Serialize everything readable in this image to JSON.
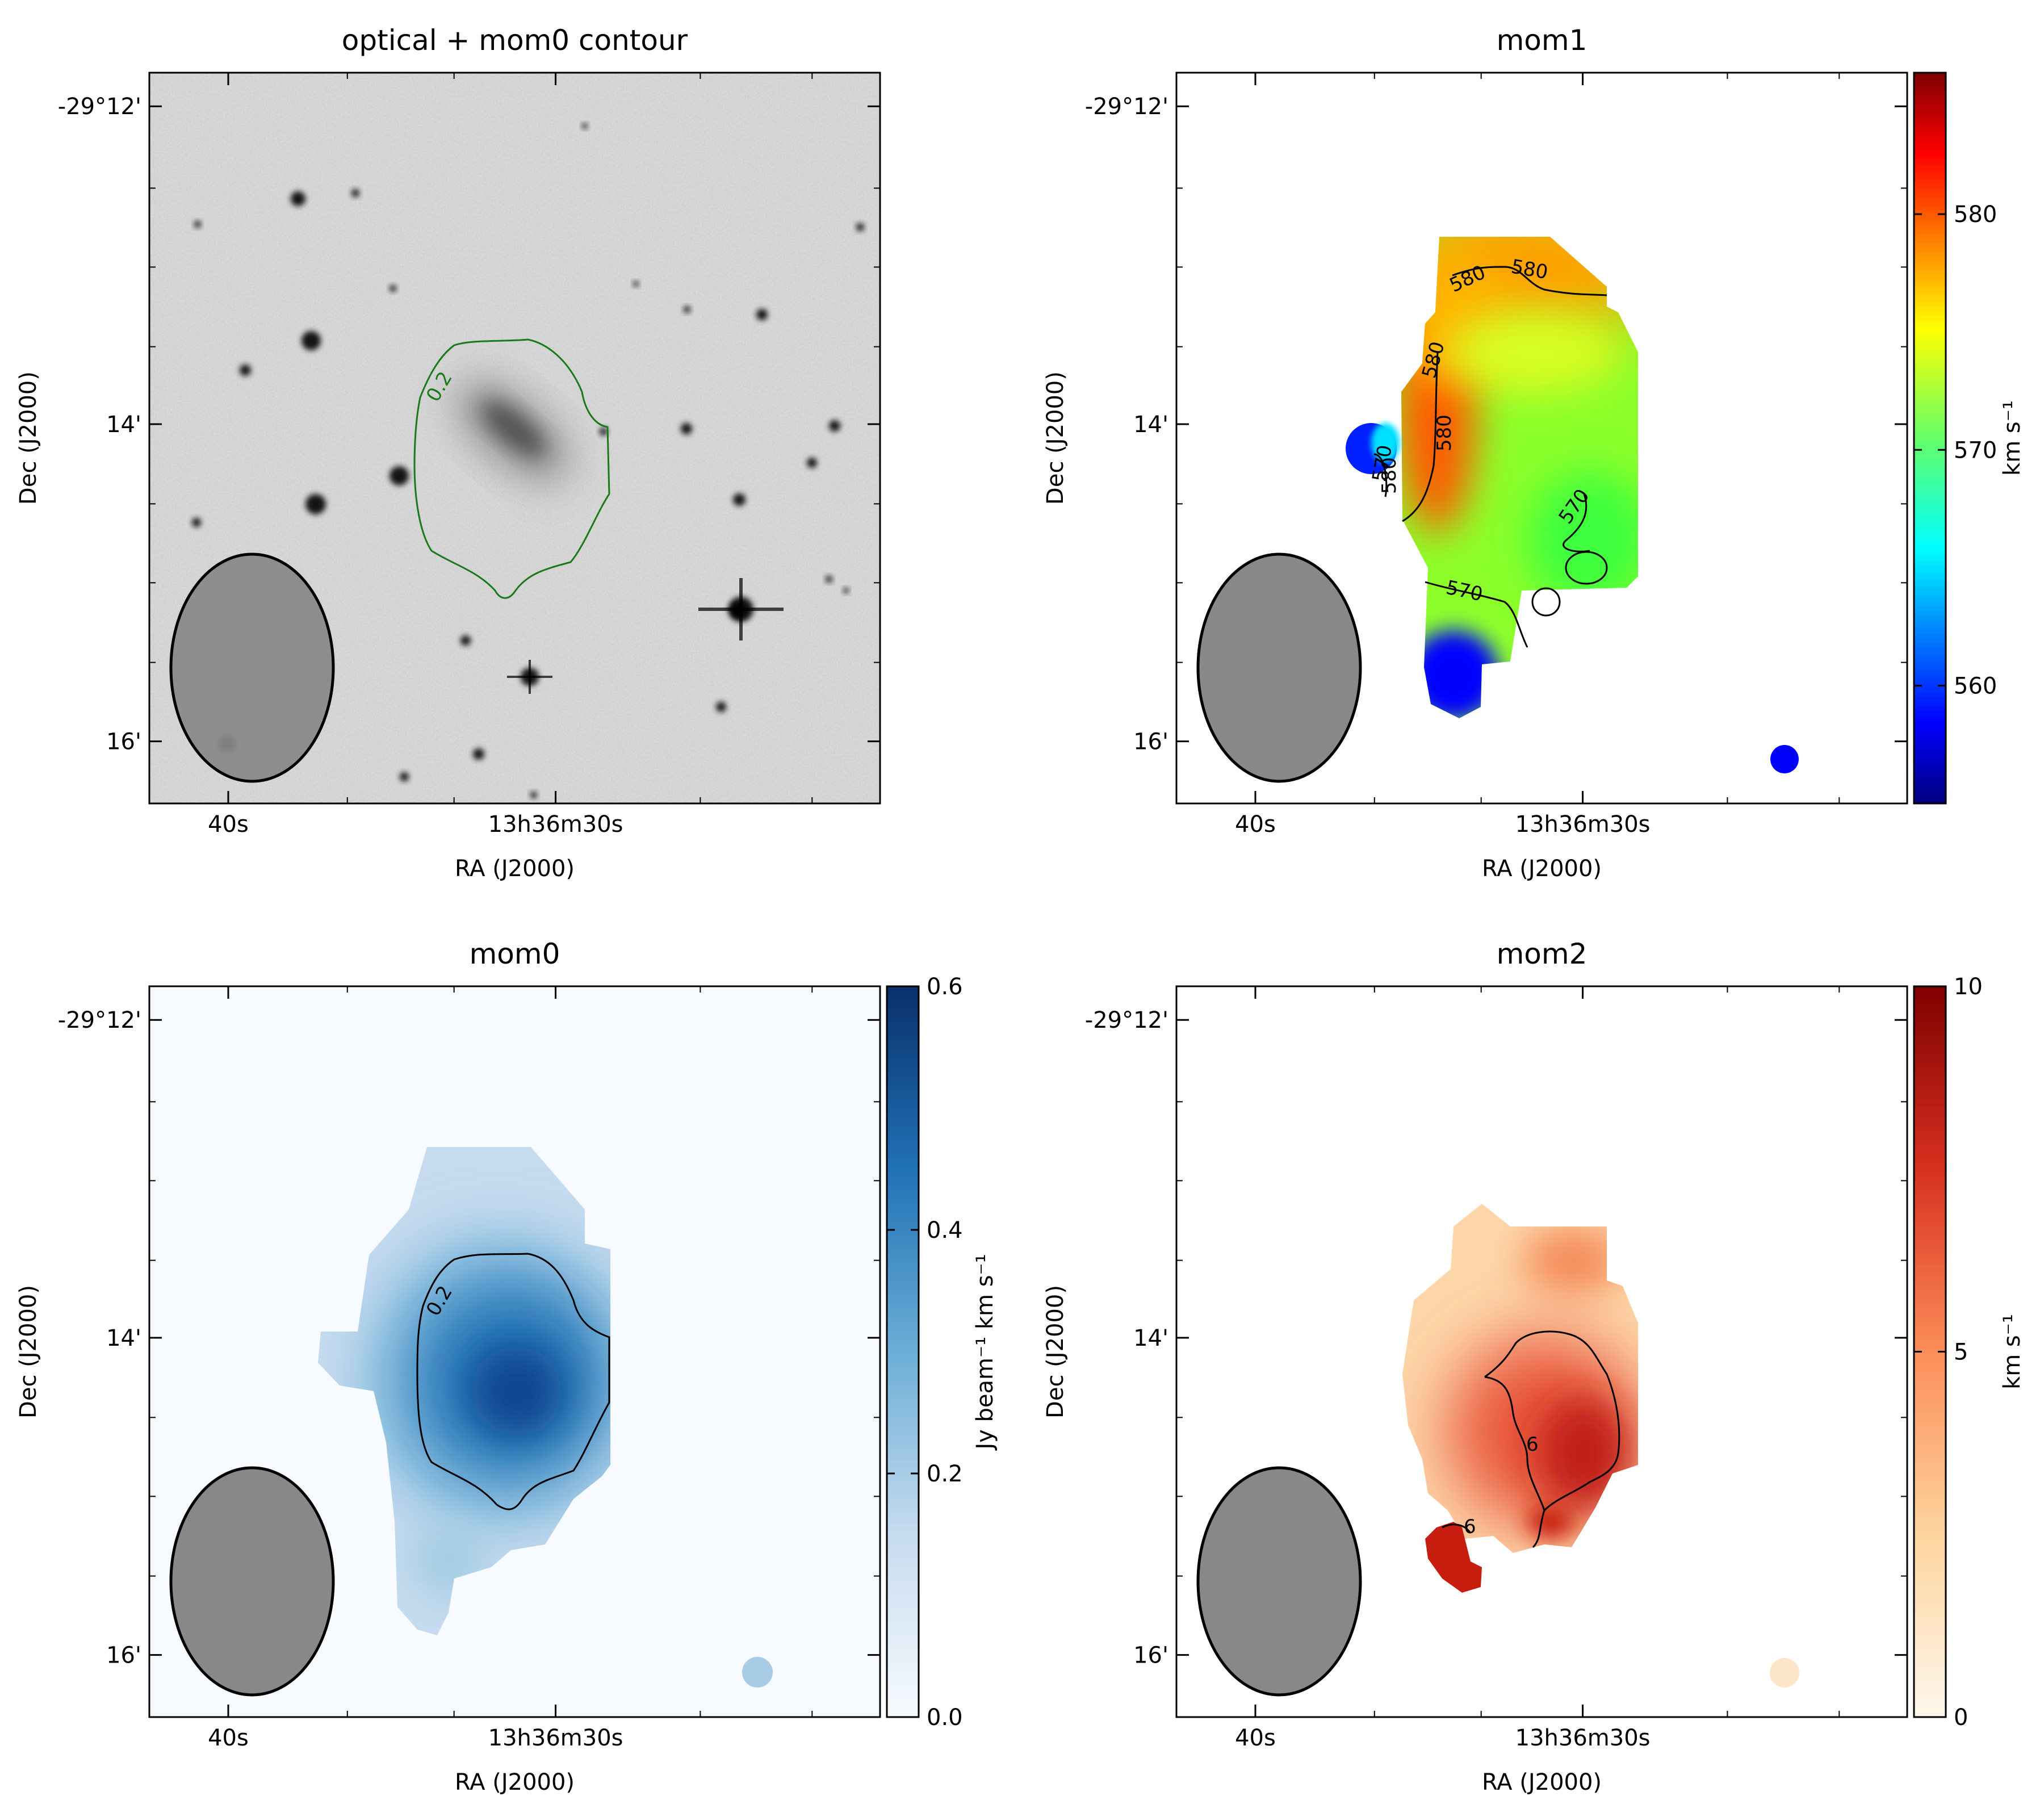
{
  "chart_data": [
    {
      "type": "heatmap",
      "title": "optical + mom0 contour",
      "colormap": "gray_r",
      "xlabel": "RA (J2000)",
      "ylabel": "Dec (J2000)",
      "x_ticks": [
        "40s",
        "13h36m30s"
      ],
      "y_ticks": [
        "-29°12'",
        "14'",
        "16'"
      ],
      "contours": [
        {
          "level": 0.2,
          "label": "0.2",
          "color": "#1a7a1a"
        }
      ],
      "beam": true,
      "colorbar": null
    },
    {
      "type": "heatmap",
      "title": "mom1",
      "colormap": "jet",
      "xlabel": "RA (J2000)",
      "ylabel": "Dec (J2000)",
      "x_ticks": [
        "40s",
        "13h36m30s"
      ],
      "y_ticks": [
        "-29°12'",
        "14'",
        "16'"
      ],
      "contours": [
        {
          "level": 570,
          "label": "570"
        },
        {
          "level": 580,
          "label": "580"
        }
      ],
      "beam": true,
      "colorbar": {
        "range": [
          555,
          586
        ],
        "ticks": [
          "560",
          "570",
          "580"
        ],
        "label": "km s⁻¹"
      }
    },
    {
      "type": "heatmap",
      "title": "mom0",
      "colormap": "Blues",
      "xlabel": "RA (J2000)",
      "ylabel": "Dec (J2000)",
      "x_ticks": [
        "40s",
        "13h36m30s"
      ],
      "y_ticks": [
        "-29°12'",
        "14'",
        "16'"
      ],
      "contours": [
        {
          "level": 0.2,
          "label": "0.2"
        }
      ],
      "beam": true,
      "colorbar": {
        "range": [
          0.0,
          0.6
        ],
        "ticks": [
          "0.0",
          "0.2",
          "0.4",
          "0.6"
        ],
        "label": "Jy beam⁻¹ km s⁻¹"
      }
    },
    {
      "type": "heatmap",
      "title": "mom2",
      "colormap": "OrRd",
      "xlabel": "RA (J2000)",
      "ylabel": "Dec (J2000)",
      "x_ticks": [
        "40s",
        "13h36m30s"
      ],
      "y_ticks": [
        "-29°12'",
        "14'",
        "16'"
      ],
      "contours": [
        {
          "level": 6,
          "label": "6"
        }
      ],
      "beam": true,
      "colorbar": {
        "range": [
          0,
          10
        ],
        "ticks": [
          "0",
          "5",
          "10"
        ],
        "label": "km s⁻¹"
      }
    }
  ]
}
